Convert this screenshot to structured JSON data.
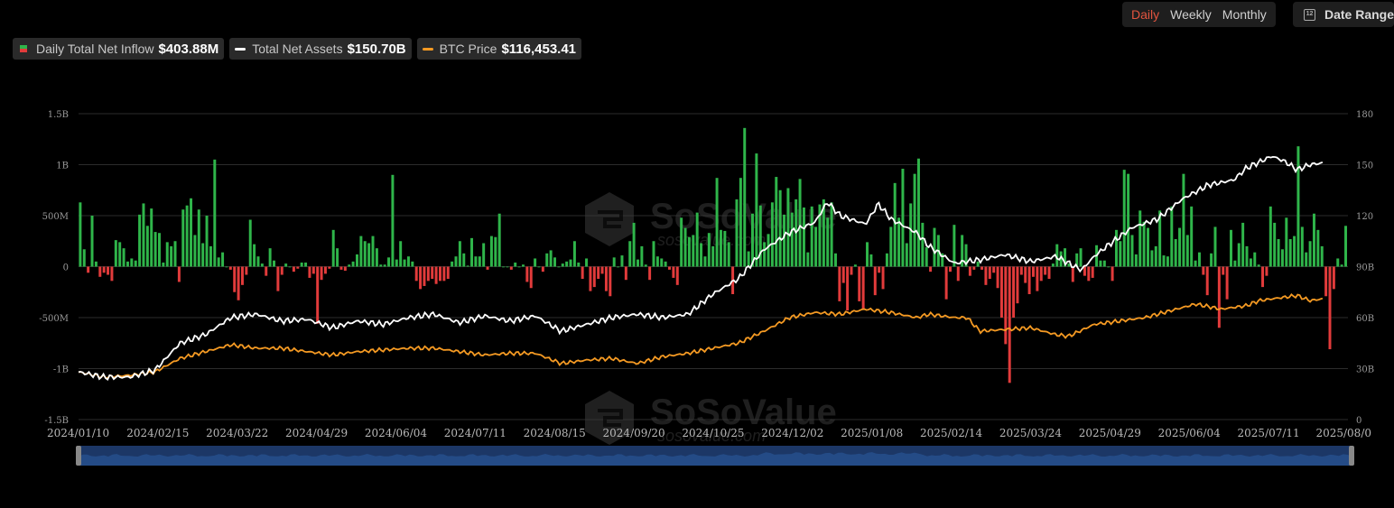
{
  "controls": {
    "periods": [
      {
        "label": "Daily",
        "active": true
      },
      {
        "label": "Weekly",
        "active": false
      },
      {
        "label": "Monthly",
        "active": false
      }
    ],
    "date_range_label": "Date Range",
    "calendar_icon_text": "12"
  },
  "legend": {
    "inflow": {
      "label": "Daily Total Net Inflow",
      "value": "$403.88M"
    },
    "assets": {
      "label": "Total Net Assets",
      "value": "$150.70B"
    },
    "btc": {
      "label": "BTC Price",
      "value": "$116,453.41"
    }
  },
  "watermark": {
    "brand": "SoSoValue",
    "url": "sosovalue.com"
  },
  "colors": {
    "positive": "#2fb54a",
    "negative": "#e23b3b",
    "assets_line": "#ffffff",
    "btc_line": "#f59a23",
    "grid": "#2c2c2c",
    "navigator_fill": "#1c3766"
  },
  "chart_data": {
    "type": "bar",
    "title": "",
    "x_labels": [
      "2024/01/10",
      "2024/02/15",
      "2024/03/22",
      "2024/04/29",
      "2024/06/04",
      "2024/07/11",
      "2024/08/15",
      "2024/09/20",
      "2024/10/25",
      "2024/12/02",
      "2025/01/08",
      "2025/02/14",
      "2025/03/24",
      "2025/04/29",
      "2025/06/04",
      "2025/07/11",
      "2025/08/0"
    ],
    "left_axis": {
      "ticks": [
        "1.5B",
        "1B",
        "500M",
        "0",
        "-500M",
        "-1B",
        "-1.5B"
      ],
      "range": [
        -1.5,
        1.5
      ],
      "unit": "B USD"
    },
    "right_axis": {
      "ticks": [
        "180",
        "150",
        "120",
        "90B",
        "60B",
        "30B",
        "0"
      ],
      "range": [
        0,
        180
      ],
      "unit": "B USD"
    },
    "series": [
      {
        "name": "Daily Total Net Inflow",
        "type": "bar",
        "approx_daily_values": [
          0.63,
          0.17,
          -0.06,
          0.5,
          0.05,
          -0.1,
          -0.06,
          -0.08,
          -0.14,
          0.26,
          0.24,
          0.18,
          0.05,
          0.08,
          0.06,
          0.51,
          0.62,
          0.4,
          0.57,
          0.34,
          0.33,
          0.04,
          0.24,
          0.2,
          0.25,
          -0.15,
          0.56,
          0.6,
          0.67,
          0.31,
          0.56,
          0.23,
          0.5,
          0.2,
          1.05,
          0.09,
          0.14,
          0.0,
          -0.03,
          -0.25,
          -0.33,
          -0.18,
          -0.08,
          0.46,
          0.22,
          0.1,
          0.03,
          -0.09,
          0.18,
          0.06,
          -0.24,
          -0.08,
          0.03,
          0.0,
          -0.05,
          -0.02,
          0.04,
          0.04,
          -0.11,
          -0.07,
          -0.56,
          -0.13,
          -0.07,
          -0.02,
          0.36,
          0.18,
          -0.03,
          -0.04,
          0.02,
          0.05,
          0.12,
          0.3,
          0.25,
          0.23,
          0.3,
          0.18,
          0.02,
          0.02,
          0.09,
          0.9,
          0.07,
          0.25,
          0.07,
          0.1,
          0.05,
          -0.14,
          -0.22,
          -0.19,
          -0.14,
          -0.12,
          -0.17,
          -0.14,
          -0.14,
          -0.12,
          0.05,
          0.1,
          0.25,
          0.13,
          0.01,
          0.28,
          0.1,
          0.1,
          0.23,
          -0.03,
          0.3,
          0.29,
          0.52,
          0.0,
          0.0,
          -0.03,
          0.04,
          0.0,
          0.02,
          -0.15,
          -0.21,
          0.08,
          0.0,
          -0.05,
          0.13,
          0.16,
          0.09,
          0.0,
          0.03,
          0.05,
          0.07,
          0.25,
          0.04,
          -0.12,
          0.08,
          -0.24,
          -0.2,
          -0.12,
          -0.07,
          -0.24,
          -0.29,
          0.09,
          0.0,
          0.11,
          -0.13,
          0.25,
          0.43,
          0.07,
          0.2,
          0.02,
          -0.13,
          0.25,
          0.1,
          0.08,
          0.05,
          -0.03,
          -0.11,
          -0.18,
          0.48,
          0.38,
          0.29,
          0.31,
          0.53,
          0.23,
          0.1,
          0.33,
          0.2,
          0.87,
          0.36,
          0.35,
          0.24,
          -0.27,
          0.66,
          0.87,
          1.36,
          0.15,
          0.52,
          1.11,
          0.6,
          0.24,
          0.32,
          0.63,
          0.88,
          0.75,
          0.51,
          0.77,
          0.53,
          0.66,
          0.86,
          0.58,
          0.14,
          0.59,
          0.39,
          0.61,
          0.66,
          0.48,
          0.63,
          0.13,
          -0.34,
          -0.16,
          -0.43,
          -0.08,
          0.02,
          -0.34,
          -0.42,
          0.24,
          0.12,
          -0.28,
          -0.06,
          -0.22,
          0.13,
          0.39,
          0.82,
          0.48,
          0.96,
          0.23,
          0.62,
          0.91,
          1.06,
          0.43,
          0.19,
          -0.05,
          0.38,
          0.31,
          0.13,
          -0.32,
          -0.05,
          0.41,
          -0.14,
          0.31,
          0.22,
          -0.09,
          -0.03,
          0.05,
          -0.03,
          -0.18,
          -0.12,
          -0.06,
          -0.21,
          -0.5,
          -0.76,
          -1.14,
          -0.5,
          -0.36,
          -0.08,
          -0.16,
          -0.27,
          -0.1,
          -0.24,
          -0.14,
          -0.08,
          -0.12,
          0.03,
          0.22,
          0.15,
          0.18,
          0.03,
          -0.15,
          0.13,
          0.18,
          -0.09,
          -0.14,
          -0.11,
          0.21,
          0.06,
          0.06,
          0.0,
          -0.14,
          0.36,
          0.25,
          0.95,
          0.91,
          0.31,
          0.12,
          0.55,
          0.44,
          0.38,
          0.16,
          0.2,
          0.55,
          0.11,
          0.1,
          0.59,
          0.27,
          0.38,
          0.91,
          0.31,
          0.59,
          0.06,
          0.14,
          -0.08,
          -0.28,
          0.13,
          0.39,
          -0.6,
          -0.08,
          -0.32,
          0.36,
          0.06,
          0.23,
          0.43,
          0.2,
          0.08,
          0.14,
          0.02,
          -0.2,
          -0.09,
          0.59,
          0.43,
          0.27,
          0.17,
          0.48,
          0.27,
          0.3,
          1.18,
          0.39,
          0.14,
          0.25,
          0.52,
          0.36,
          0.2,
          -0.29,
          -0.81,
          -0.22,
          0.08,
          0.02,
          0.4
        ]
      },
      {
        "name": "Total Net Assets",
        "type": "line",
        "points": [
          [
            0,
            28
          ],
          [
            0.02,
            25
          ],
          [
            0.04,
            25
          ],
          [
            0.06,
            29
          ],
          [
            0.08,
            45
          ],
          [
            0.1,
            50
          ],
          [
            0.12,
            60
          ],
          [
            0.14,
            62
          ],
          [
            0.16,
            58
          ],
          [
            0.18,
            59
          ],
          [
            0.2,
            54
          ],
          [
            0.22,
            58
          ],
          [
            0.24,
            56
          ],
          [
            0.26,
            60
          ],
          [
            0.28,
            62
          ],
          [
            0.3,
            57
          ],
          [
            0.32,
            61
          ],
          [
            0.34,
            58
          ],
          [
            0.36,
            61
          ],
          [
            0.38,
            52
          ],
          [
            0.4,
            56
          ],
          [
            0.42,
            60
          ],
          [
            0.44,
            62
          ],
          [
            0.46,
            60
          ],
          [
            0.48,
            62
          ],
          [
            0.5,
            74
          ],
          [
            0.52,
            83
          ],
          [
            0.54,
            100
          ],
          [
            0.56,
            110
          ],
          [
            0.58,
            116
          ],
          [
            0.59,
            128
          ],
          [
            0.6,
            120
          ],
          [
            0.62,
            115
          ],
          [
            0.63,
            127
          ],
          [
            0.64,
            118
          ],
          [
            0.66,
            110
          ],
          [
            0.67,
            102
          ],
          [
            0.69,
            92
          ],
          [
            0.71,
            94
          ],
          [
            0.73,
            97
          ],
          [
            0.75,
            93
          ],
          [
            0.77,
            96
          ],
          [
            0.79,
            88
          ],
          [
            0.8,
            96
          ],
          [
            0.81,
            102
          ],
          [
            0.83,
            113
          ],
          [
            0.85,
            118
          ],
          [
            0.87,
            130
          ],
          [
            0.89,
            138
          ],
          [
            0.91,
            141
          ],
          [
            0.92,
            148
          ],
          [
            0.94,
            155
          ],
          [
            0.95,
            152
          ],
          [
            0.96,
            147
          ],
          [
            0.97,
            150
          ],
          [
            0.98,
            151
          ]
        ]
      },
      {
        "name": "BTC Price",
        "type": "line",
        "points": [
          [
            0,
            28
          ],
          [
            0.02,
            25
          ],
          [
            0.04,
            26
          ],
          [
            0.06,
            28
          ],
          [
            0.08,
            36
          ],
          [
            0.1,
            40
          ],
          [
            0.12,
            44
          ],
          [
            0.14,
            42
          ],
          [
            0.16,
            42
          ],
          [
            0.18,
            40
          ],
          [
            0.2,
            38
          ],
          [
            0.22,
            40
          ],
          [
            0.24,
            41
          ],
          [
            0.26,
            42
          ],
          [
            0.28,
            42
          ],
          [
            0.3,
            40
          ],
          [
            0.32,
            38
          ],
          [
            0.34,
            39
          ],
          [
            0.36,
            39
          ],
          [
            0.38,
            33
          ],
          [
            0.4,
            35
          ],
          [
            0.42,
            36
          ],
          [
            0.44,
            33
          ],
          [
            0.46,
            37
          ],
          [
            0.48,
            39
          ],
          [
            0.5,
            42
          ],
          [
            0.52,
            45
          ],
          [
            0.54,
            52
          ],
          [
            0.56,
            60
          ],
          [
            0.58,
            63
          ],
          [
            0.6,
            62
          ],
          [
            0.62,
            65
          ],
          [
            0.64,
            63
          ],
          [
            0.66,
            60
          ],
          [
            0.67,
            62
          ],
          [
            0.69,
            60
          ],
          [
            0.7,
            60
          ],
          [
            0.71,
            52
          ],
          [
            0.73,
            53
          ],
          [
            0.75,
            54
          ],
          [
            0.77,
            50
          ],
          [
            0.78,
            49
          ],
          [
            0.8,
            56
          ],
          [
            0.82,
            58
          ],
          [
            0.84,
            60
          ],
          [
            0.86,
            64
          ],
          [
            0.88,
            68
          ],
          [
            0.9,
            65
          ],
          [
            0.92,
            67
          ],
          [
            0.93,
            70
          ],
          [
            0.95,
            72
          ],
          [
            0.96,
            73
          ],
          [
            0.97,
            70
          ],
          [
            0.98,
            71
          ]
        ]
      }
    ],
    "grid": true,
    "legend_position": "top-left"
  }
}
